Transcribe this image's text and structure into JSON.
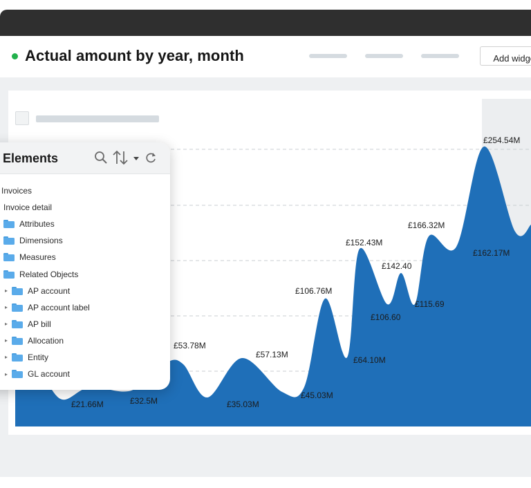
{
  "header": {
    "title": "Actual amount by year, month",
    "add_widget_label": "Add widget",
    "status_color": "#22b14c"
  },
  "chart_data": {
    "type": "area",
    "title": "Actual amount by year, month",
    "color": "#1f6fb8",
    "grid": true,
    "points": [
      {
        "label": "£21.66M",
        "value": 21.66
      },
      {
        "label": "£32.5M",
        "value": 32.5
      },
      {
        "label": "£53.78M",
        "value": 53.78
      },
      {
        "label": "£35.03M",
        "value": 35.03
      },
      {
        "label": "£57.13M",
        "value": 57.13
      },
      {
        "label": "£45.03M",
        "value": 45.03
      },
      {
        "label": "£106.76M",
        "value": 106.76
      },
      {
        "label": "£64.10M",
        "value": 64.1
      },
      {
        "label": "£152.43M",
        "value": 152.43
      },
      {
        "label": "£106.60",
        "value": 106.6
      },
      {
        "label": "£142.40",
        "value": 142.4
      },
      {
        "label": "£115.69",
        "value": 115.69
      },
      {
        "label": "£166.32M",
        "value": 166.32
      },
      {
        "label": "£162.17M",
        "value": 162.17
      },
      {
        "label": "£254.54M",
        "value": 254.54
      }
    ]
  },
  "panel": {
    "title": "Data Elements",
    "tools": [
      "search-icon",
      "sort-icon",
      "chevron-down-icon",
      "refresh-icon"
    ],
    "items": [
      {
        "label": "Invoices",
        "level": 0,
        "caret": false,
        "folder": false
      },
      {
        "label": "Invoice detail",
        "level": 1,
        "caret": false,
        "folder": false
      },
      {
        "label": "Attributes",
        "level": 2,
        "caret": false,
        "folder": true
      },
      {
        "label": "Dimensions",
        "level": 2,
        "caret": false,
        "folder": true
      },
      {
        "label": "Measures",
        "level": 2,
        "caret": false,
        "folder": true
      },
      {
        "label": "Related Objects",
        "level": 2,
        "caret": false,
        "folder": true
      },
      {
        "label": "AP account",
        "level": 3,
        "caret": true,
        "folder": true
      },
      {
        "label": "AP account label",
        "level": 3,
        "caret": true,
        "folder": true
      },
      {
        "label": "AP bill",
        "level": 3,
        "caret": true,
        "folder": true
      },
      {
        "label": "Allocation",
        "level": 3,
        "caret": true,
        "folder": true
      },
      {
        "label": "Entity",
        "level": 3,
        "caret": true,
        "folder": true
      },
      {
        "label": "GL account",
        "level": 3,
        "caret": true,
        "folder": true
      }
    ]
  }
}
